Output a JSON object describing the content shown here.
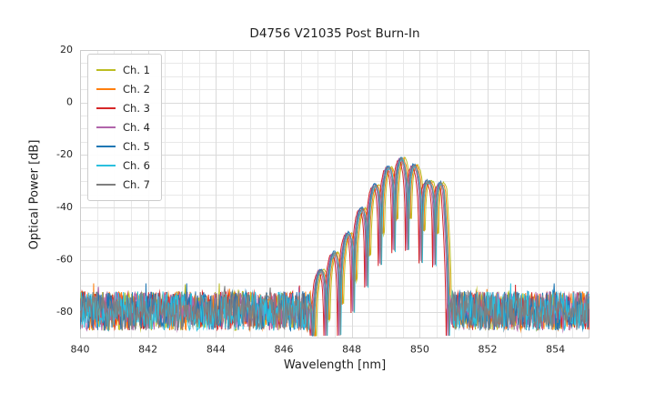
{
  "figure": {
    "background": "#ffffff",
    "grid_color": "#e8e8e8",
    "major_grid_color": "#dadada",
    "border_color": "#cccccc",
    "text_color": "#262626"
  },
  "chart_data": {
    "type": "line",
    "title": "D4756 V21035 Post Burn-In",
    "xlabel": "Wavelength [nm]",
    "ylabel": "Optical Power [dB]",
    "xlim": [
      840,
      855
    ],
    "ylim": [
      -90,
      20
    ],
    "xticks": [
      840,
      842,
      844,
      846,
      848,
      850,
      852,
      854
    ],
    "yticks": [
      20,
      0,
      -20,
      -40,
      -60,
      -80
    ],
    "grid": {
      "show": true,
      "x_minor_step_nm": 0.5,
      "y_minor_step_db": 5
    },
    "legend": {
      "position": "upper-left"
    },
    "sample_step_nm": 0.02,
    "noise_floor": {
      "mean_db": -79.5,
      "peak_to_peak_db": 15,
      "max_spike_db": -69
    },
    "signal": {
      "band_nm": [
        846.8,
        850.9
      ],
      "peak_db": -21.5,
      "peak_wavelength_nm": 849.45,
      "ripple_period_nm": 0.4,
      "ripple_phase_nm": 849.25,
      "notch_depth_db": 34,
      "noise_takeover_threshold_db": -74,
      "clip_min_db": -89,
      "trace_jitter_db": 0.8,
      "envelope_points_nm_db": [
        [
          846.6,
          -80
        ],
        [
          846.9,
          -67
        ],
        [
          847.3,
          -60
        ],
        [
          847.7,
          -54
        ],
        [
          848.0,
          -47
        ],
        [
          848.3,
          -40
        ],
        [
          848.6,
          -33
        ],
        [
          848.9,
          -27
        ],
        [
          849.2,
          -23
        ],
        [
          849.45,
          -21.5
        ],
        [
          849.7,
          -22.5
        ],
        [
          850.0,
          -26
        ],
        [
          850.25,
          -30.5
        ],
        [
          850.5,
          -27.5
        ],
        [
          850.7,
          -33
        ],
        [
          850.85,
          -58
        ],
        [
          850.95,
          -80
        ]
      ]
    },
    "series": [
      {
        "name": "Ch. 1",
        "color": "#bcbd22",
        "wavelength_offset_nm": 0.1,
        "level_offset_db": 0.3
      },
      {
        "name": "Ch. 2",
        "color": "#ff7f0e",
        "wavelength_offset_nm": 0.06,
        "level_offset_db": 0.0
      },
      {
        "name": "Ch. 3",
        "color": "#d62728",
        "wavelength_offset_nm": -0.07,
        "level_offset_db": -0.4
      },
      {
        "name": "Ch. 4",
        "color": "#b165ab",
        "wavelength_offset_nm": -0.03,
        "level_offset_db": 0.2
      },
      {
        "name": "Ch. 5",
        "color": "#1f77b4",
        "wavelength_offset_nm": 0.0,
        "level_offset_db": 0.6
      },
      {
        "name": "Ch. 6",
        "color": "#2bc0de",
        "wavelength_offset_nm": 0.03,
        "level_offset_db": -0.2
      },
      {
        "name": "Ch. 7",
        "color": "#7f7f7f",
        "wavelength_offset_nm": 0.01,
        "level_offset_db": 0.1
      }
    ]
  }
}
